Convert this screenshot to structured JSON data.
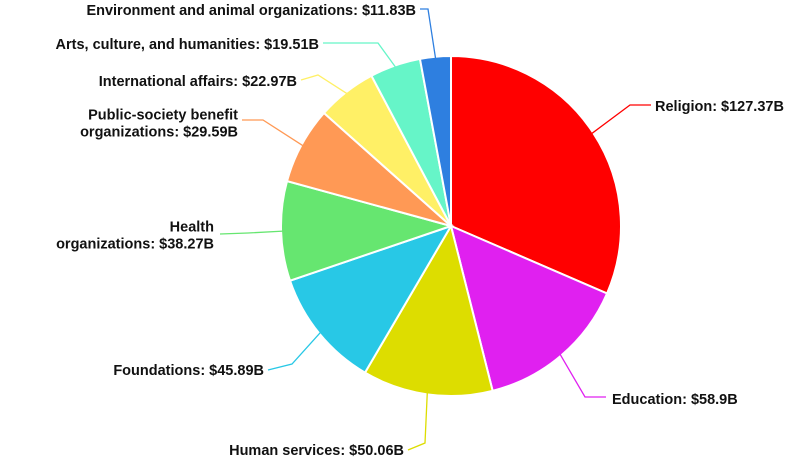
{
  "chart_data": {
    "type": "pie",
    "slices": [
      {
        "category": "Religion",
        "value": 127.37,
        "label": "Religion: $127.37B",
        "color": "#ff0000"
      },
      {
        "category": "Education",
        "value": 58.9,
        "label": "Education: $58.9B",
        "color": "#e020f0"
      },
      {
        "category": "Human services",
        "value": 50.06,
        "label": "Human services: $50.06B",
        "color": "#dddd00"
      },
      {
        "category": "Foundations",
        "value": 45.89,
        "label": "Foundations: $45.89B",
        "color": "#28c8e6"
      },
      {
        "category": "Health organizations",
        "value": 38.27,
        "label": [
          "Health",
          "organizations: $38.27B"
        ],
        "color": "#66e670"
      },
      {
        "category": "Public-society benefit organizations",
        "value": 29.59,
        "label": [
          "Public-society benefit",
          "organizations: $29.59B"
        ],
        "color": "#ff9955"
      },
      {
        "category": "International affairs",
        "value": 22.97,
        "label": "International affairs: $22.97B",
        "color": "#fff066"
      },
      {
        "category": "Arts, culture, and humanities",
        "value": 19.51,
        "label": "Arts, culture, and humanities: $19.51B",
        "color": "#66f5c8"
      },
      {
        "category": "Environment and animal organizations",
        "value": 11.83,
        "label": "Environment and animal organizations: $11.83B",
        "color": "#2e7fe0"
      }
    ],
    "start_angle": "12 o'clock",
    "direction": "clockwise",
    "legend": "none"
  }
}
